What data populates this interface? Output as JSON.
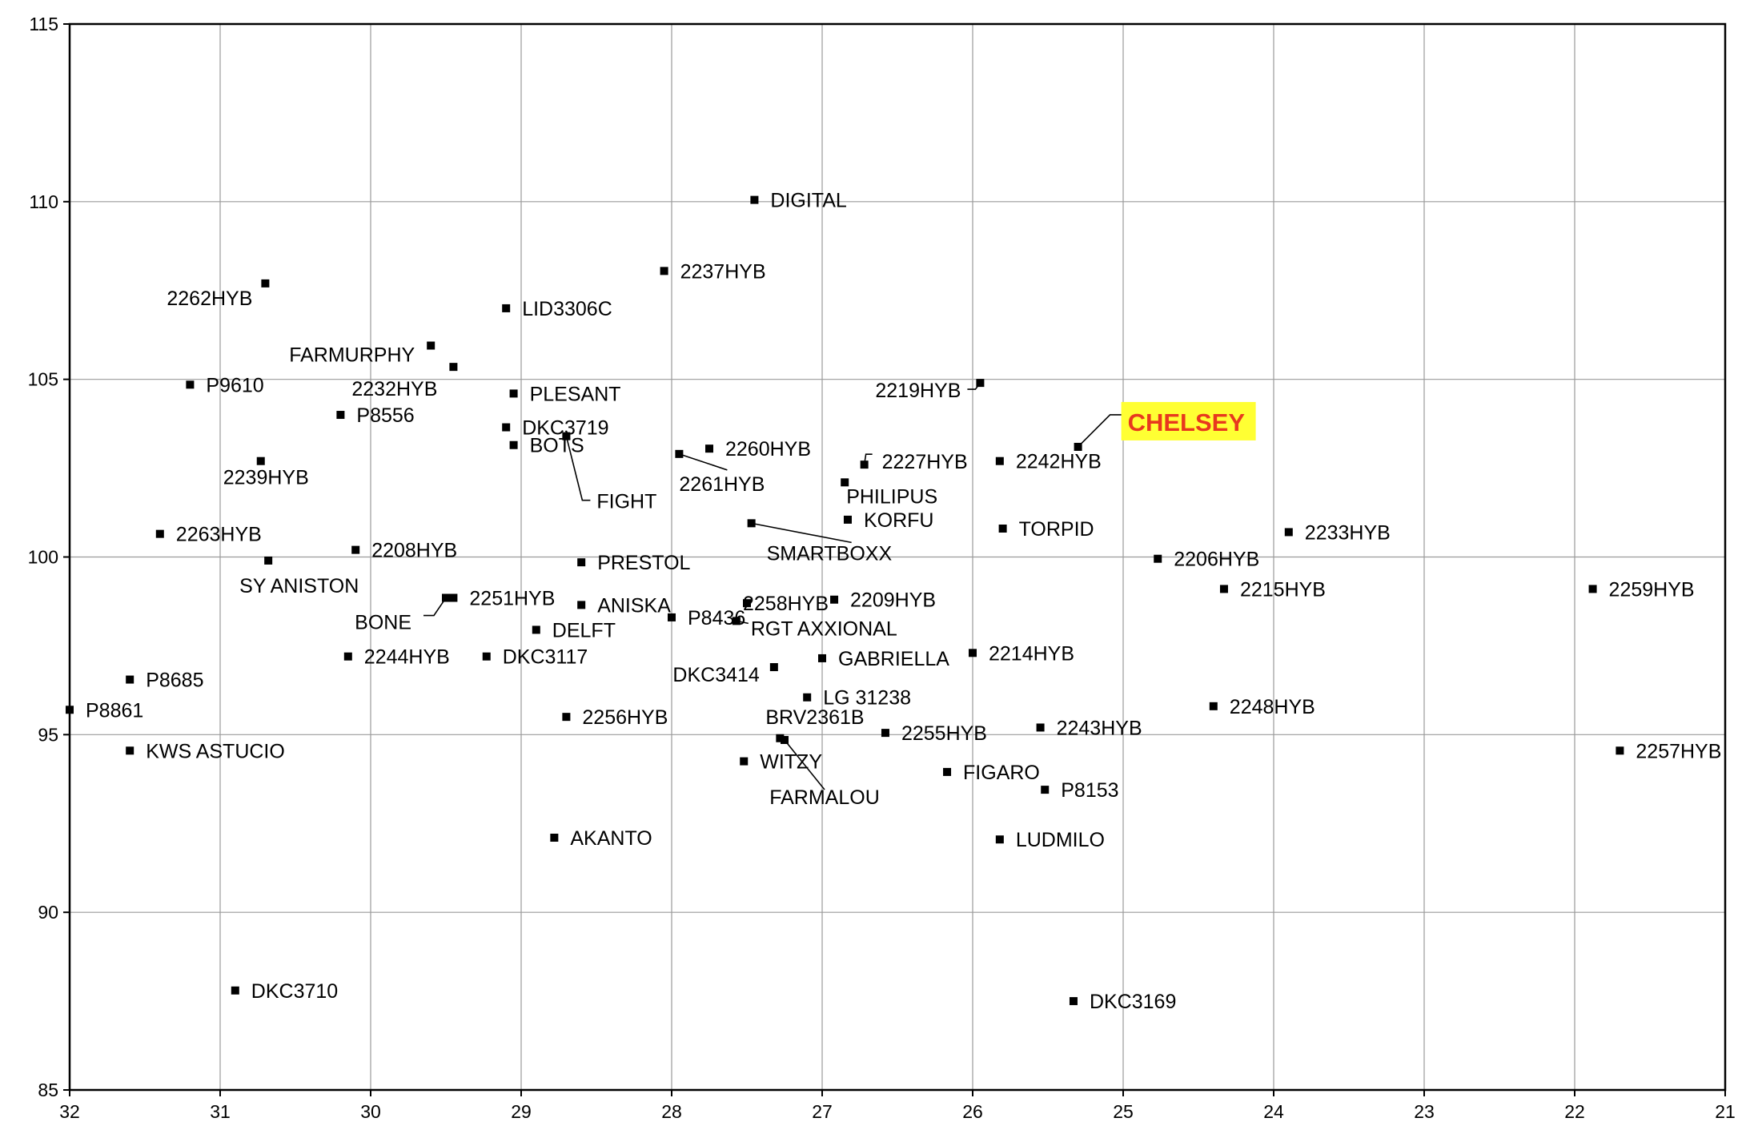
{
  "chart_data": {
    "type": "scatter",
    "title": "",
    "xlabel": "",
    "ylabel": "",
    "x_reversed": true,
    "xlim": [
      32,
      21
    ],
    "ylim": [
      85,
      115
    ],
    "grid": true,
    "x_ticks": [
      "32",
      "31",
      "30",
      "29",
      "28",
      "27",
      "26",
      "25",
      "24",
      "23",
      "22",
      "21"
    ],
    "y_ticks": [
      "115",
      "110",
      "105",
      "100",
      "95",
      "90",
      "85"
    ],
    "highlight_color": "#e8381e",
    "highlight_background": "#ffff33",
    "points": [
      {
        "label": "DIGITAL",
        "x": 27.45,
        "y": 110.05
      },
      {
        "label": "2237HYB",
        "x": 28.05,
        "y": 108.05
      },
      {
        "label": "2262HYB",
        "x": 30.7,
        "y": 107.7
      },
      {
        "label": "LID3306C",
        "x": 29.1,
        "y": 107.0
      },
      {
        "label": "FARMURPHY",
        "x": 29.6,
        "y": 105.95
      },
      {
        "label": "2232HYB",
        "x": 29.45,
        "y": 105.35
      },
      {
        "label": "P9610",
        "x": 31.2,
        "y": 104.85
      },
      {
        "label": "2219HYB",
        "x": 25.95,
        "y": 104.9
      },
      {
        "label": "PLESANT",
        "x": 29.05,
        "y": 104.6
      },
      {
        "label": "P8556",
        "x": 30.2,
        "y": 104.0
      },
      {
        "label": "DKC3719",
        "x": 29.1,
        "y": 103.65
      },
      {
        "label": "CHELSEY",
        "x": 25.3,
        "y": 103.1,
        "highlight": true
      },
      {
        "label": "BOTS",
        "x": 29.05,
        "y": 103.15
      },
      {
        "label": "FIGHT",
        "x": 28.7,
        "y": 103.4
      },
      {
        "label": "2260HYB",
        "x": 27.75,
        "y": 103.05
      },
      {
        "label": "2261HYB",
        "x": 27.95,
        "y": 102.9
      },
      {
        "label": "2227HYB",
        "x": 26.72,
        "y": 102.6
      },
      {
        "label": "2242HYB",
        "x": 25.82,
        "y": 102.7
      },
      {
        "label": "2239HYB",
        "x": 30.73,
        "y": 102.7
      },
      {
        "label": "PHILIPUS",
        "x": 26.85,
        "y": 102.1
      },
      {
        "label": "KORFU",
        "x": 26.83,
        "y": 101.05
      },
      {
        "label": "SMARTBOXX",
        "x": 27.47,
        "y": 100.95
      },
      {
        "label": "TORPID",
        "x": 25.8,
        "y": 100.8
      },
      {
        "label": "2233HYB",
        "x": 23.9,
        "y": 100.7
      },
      {
        "label": "2263HYB",
        "x": 31.4,
        "y": 100.65
      },
      {
        "label": "2208HYB",
        "x": 30.1,
        "y": 100.2
      },
      {
        "label": "2206HYB",
        "x": 24.77,
        "y": 99.95
      },
      {
        "label": "SY ANISTON",
        "x": 30.68,
        "y": 99.9
      },
      {
        "label": "PRESTOL",
        "x": 28.6,
        "y": 99.85
      },
      {
        "label": "2215HYB",
        "x": 24.33,
        "y": 99.1
      },
      {
        "label": "2259HYB",
        "x": 21.88,
        "y": 99.1
      },
      {
        "label": "2251HYB",
        "x": 29.45,
        "y": 98.85
      },
      {
        "label": "BONE",
        "x": 29.5,
        "y": 98.85
      },
      {
        "label": "2209HYB",
        "x": 26.92,
        "y": 98.8
      },
      {
        "label": "2258HYB",
        "x": 27.5,
        "y": 98.7
      },
      {
        "label": "ANISKA",
        "x": 28.6,
        "y": 98.65
      },
      {
        "label": "P8436",
        "x": 28.0,
        "y": 98.3
      },
      {
        "label": "RGT AXXIONAL",
        "x": 27.57,
        "y": 98.2
      },
      {
        "label": "DELFT",
        "x": 28.9,
        "y": 97.95
      },
      {
        "label": "2214HYB",
        "x": 26.0,
        "y": 97.3
      },
      {
        "label": "2244HYB",
        "x": 30.15,
        "y": 97.2
      },
      {
        "label": "DKC3117",
        "x": 29.23,
        "y": 97.2
      },
      {
        "label": "GABRIELLA",
        "x": 27.0,
        "y": 97.15
      },
      {
        "label": "DKC3414",
        "x": 27.32,
        "y": 96.9
      },
      {
        "label": "P8685",
        "x": 31.6,
        "y": 96.55
      },
      {
        "label": "LG 31238",
        "x": 27.1,
        "y": 96.05
      },
      {
        "label": "2248HYB",
        "x": 24.4,
        "y": 95.8
      },
      {
        "label": "P8861",
        "x": 32.0,
        "y": 95.7
      },
      {
        "label": "2256HYB",
        "x": 28.7,
        "y": 95.5
      },
      {
        "label": "BRV2361B",
        "x": 27.28,
        "y": 94.9
      },
      {
        "label": "2243HYB",
        "x": 25.55,
        "y": 95.2
      },
      {
        "label": "2255HYB",
        "x": 26.58,
        "y": 95.05
      },
      {
        "label": "FARMALOU",
        "x": 27.25,
        "y": 94.85
      },
      {
        "label": "KWS ASTUCIO",
        "x": 31.6,
        "y": 94.55
      },
      {
        "label": "2257HYB",
        "x": 21.7,
        "y": 94.55
      },
      {
        "label": "WITZY",
        "x": 27.52,
        "y": 94.25
      },
      {
        "label": "FIGARO",
        "x": 26.17,
        "y": 93.95
      },
      {
        "label": "P8153",
        "x": 25.52,
        "y": 93.45
      },
      {
        "label": "AKANTO",
        "x": 28.78,
        "y": 92.1
      },
      {
        "label": "LUDMILO",
        "x": 25.82,
        "y": 92.05
      },
      {
        "label": "DKC3710",
        "x": 30.9,
        "y": 87.8
      },
      {
        "label": "DKC3169",
        "x": 25.33,
        "y": 87.5
      }
    ]
  }
}
